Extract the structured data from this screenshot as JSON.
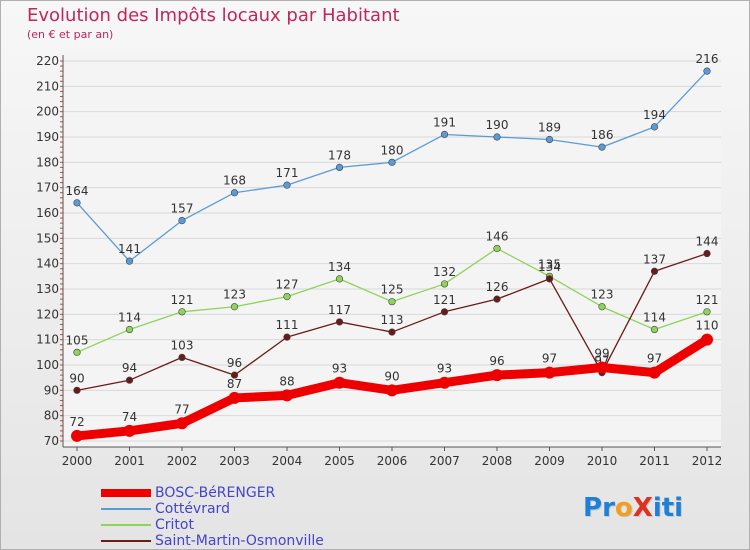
{
  "title": "Evolution des Impôts locaux par Habitant",
  "subtitle": "(en € et par an)",
  "logo_text": "ProXiti",
  "logo_letters": [
    {
      "ch": "P",
      "color": "#1e7fd6"
    },
    {
      "ch": "r",
      "color": "#1e7fd6"
    },
    {
      "ch": "o",
      "color": "#f0a020"
    },
    {
      "ch": "X",
      "color": "#e03020"
    },
    {
      "ch": "i",
      "color": "#1e7fd6"
    },
    {
      "ch": "t",
      "color": "#1e7fd6"
    },
    {
      "ch": "i",
      "color": "#1e7fd6"
    }
  ],
  "chart_data": {
    "type": "line",
    "title": "Evolution des Impôts locaux par Habitant",
    "subtitle": "(en € et par an)",
    "xlabel": "",
    "ylabel": "",
    "x": [
      "2000",
      "2001",
      "2002",
      "2003",
      "2004",
      "2005",
      "2006",
      "2007",
      "2008",
      "2009",
      "2010",
      "2011",
      "2012"
    ],
    "ylim": [
      70,
      220
    ],
    "yticks": [
      70,
      80,
      90,
      100,
      110,
      120,
      130,
      140,
      150,
      160,
      170,
      180,
      190,
      200,
      210,
      220
    ],
    "grid": true,
    "legend": "bottom-left",
    "series": [
      {
        "name": "Cottévrard",
        "color": "#5b9bd5",
        "values": [
          164,
          141,
          157,
          168,
          171,
          178,
          180,
          191,
          190,
          189,
          186,
          194,
          216
        ]
      },
      {
        "name": "Critot",
        "color": "#8fd35a",
        "values": [
          105,
          114,
          121,
          123,
          127,
          134,
          125,
          132,
          146,
          135,
          123,
          114,
          121
        ]
      },
      {
        "name": "Saint-Martin-Osmonville",
        "color": "#6b1a1a",
        "values": [
          90,
          94,
          103,
          96,
          111,
          117,
          113,
          121,
          126,
          134,
          97,
          137,
          144
        ]
      },
      {
        "name": "BOSC-BéRENGER",
        "color": "#ee0000",
        "values": [
          72,
          74,
          77,
          87,
          88,
          93,
          90,
          93,
          96,
          97,
          99,
          97,
          110
        ]
      }
    ]
  },
  "legend_items": [
    {
      "name": "BOSC-BéRENGER",
      "color": "#ee0000",
      "thick": true
    },
    {
      "name": "Cottévrard",
      "color": "#5b9bd5",
      "thick": false
    },
    {
      "name": "Critot",
      "color": "#8fd35a",
      "thick": false
    },
    {
      "name": "Saint-Martin-Osmonville",
      "color": "#6b1a1a",
      "thick": false
    }
  ]
}
